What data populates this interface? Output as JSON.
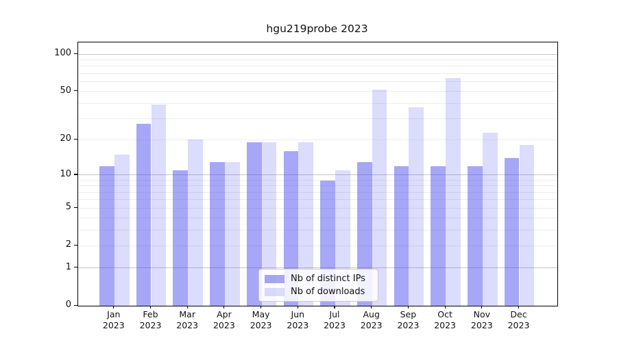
{
  "title": "hgu219probe 2023",
  "legend": {
    "items": [
      {
        "label": "Nb of distinct IPs",
        "series": "ips"
      },
      {
        "label": "Nb of downloads",
        "series": "downloads"
      }
    ]
  },
  "colors": {
    "ips": "rgba(68,68,238,0.47)",
    "downloads": "rgba(68,68,238,0.19)",
    "grid_major": "#c6c6c6",
    "grid_minor": "#ececec",
    "axis": "#000000",
    "text": "#111111"
  },
  "chart_data": {
    "type": "bar",
    "title": "hgu219probe 2023",
    "categories": [
      "Jan",
      "Feb",
      "Mar",
      "Apr",
      "May",
      "Jun",
      "Jul",
      "Aug",
      "Sep",
      "Oct",
      "Nov",
      "Dec"
    ],
    "year_label": "2023",
    "series": [
      {
        "name": "Nb of distinct IPs",
        "values": [
          12,
          27,
          11,
          13,
          19,
          16,
          9,
          13,
          12,
          12,
          12,
          14
        ]
      },
      {
        "name": "Nb of downloads",
        "values": [
          15,
          39,
          20,
          13,
          19,
          19,
          11,
          52,
          37,
          64,
          23,
          18
        ]
      }
    ],
    "yscale": "log10(1+v)",
    "yticks": [
      0,
      1,
      2,
      5,
      10,
      20,
      50,
      100
    ],
    "gridlines": {
      "major": [
        1,
        10,
        100
      ],
      "minor": [
        2,
        3,
        4,
        5,
        6,
        7,
        8,
        9,
        20,
        30,
        40,
        50,
        60,
        70,
        80,
        90
      ]
    },
    "ylim": [
      0,
      124
    ],
    "grid": true,
    "legend_position": "lower center"
  }
}
